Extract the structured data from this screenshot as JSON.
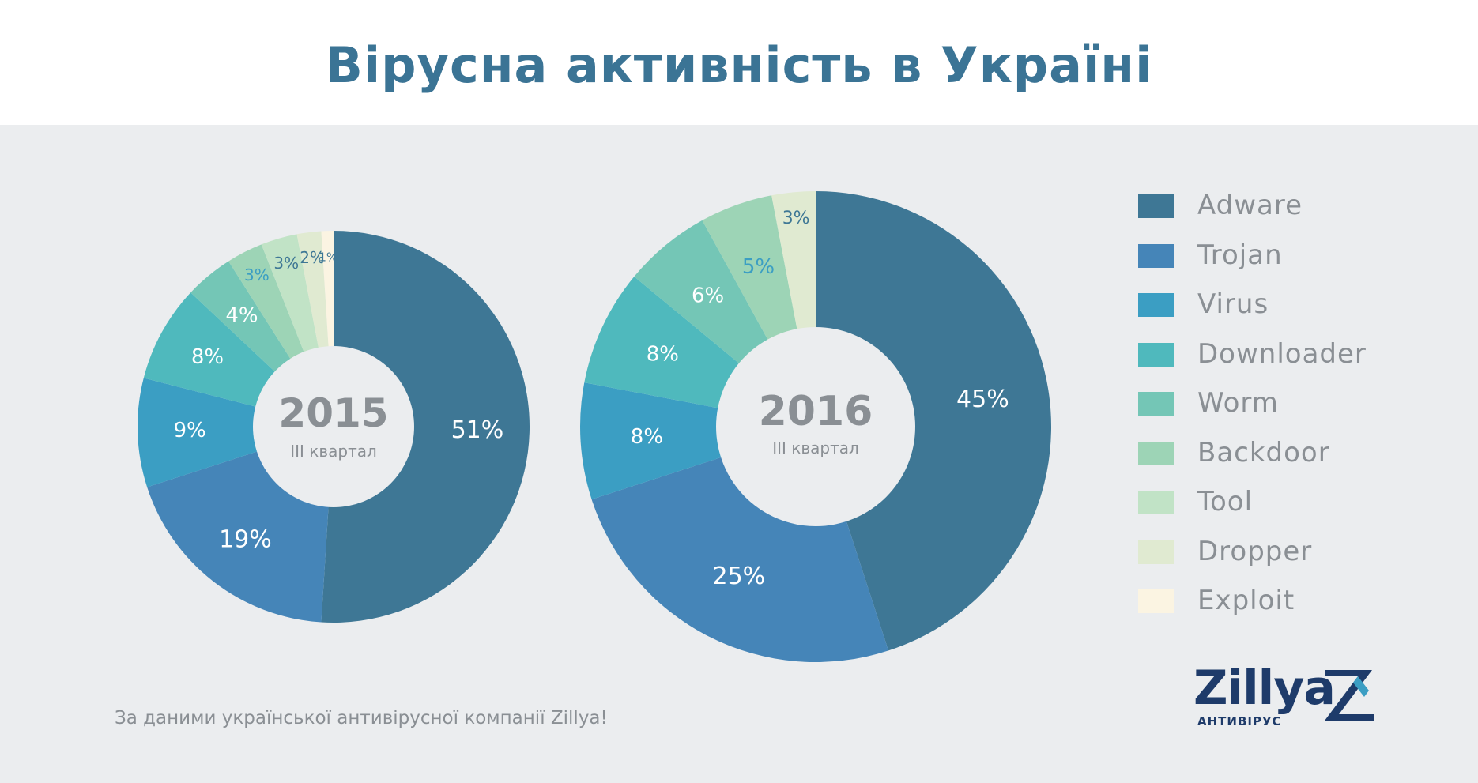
{
  "title": "Вірусна активність в Україні",
  "source_note": "За даними української антивірусної компанії Zillya!",
  "logo": {
    "word": "Zillya",
    "subtitle": "АНТИВІРУС",
    "mark": "zillya-z-logo-icon"
  },
  "colors": {
    "Adware": "#3E7795",
    "Trojan": "#4585B8",
    "Virus": "#3B9EC3",
    "Downloader": "#4FB9BD",
    "Worm": "#74C6B6",
    "Backdoor": "#9DD4B6",
    "Tool": "#C1E3C6",
    "Dropper": "#E0EAD1",
    "Exploit": "#FBF4E2"
  },
  "legend": [
    "Adware",
    "Trojan",
    "Virus",
    "Downloader",
    "Worm",
    "Backdoor",
    "Tool",
    "Dropper",
    "Exploit"
  ],
  "chart_data": [
    {
      "type": "pie",
      "center_label": "2015",
      "center_sublabel": "III квартал",
      "categories": [
        "Adware",
        "Trojan",
        "Virus",
        "Downloader",
        "Worm",
        "Backdoor",
        "Tool",
        "Dropper",
        "Exploit"
      ],
      "values": [
        51,
        19,
        9,
        8,
        4,
        3,
        3,
        2,
        1
      ],
      "labels": [
        "51%",
        "19%",
        "9%",
        "8%",
        "4%",
        "3%",
        "3%",
        "2%",
        "1%"
      ]
    },
    {
      "type": "pie",
      "center_label": "2016",
      "center_sublabel": "III квартал",
      "categories": [
        "Adware",
        "Trojan",
        "Virus",
        "Downloader",
        "Worm",
        "Backdoor",
        "Dropper"
      ],
      "values": [
        45,
        25,
        8,
        8,
        6,
        5,
        3
      ],
      "labels": [
        "45%",
        "25%",
        "8%",
        "8%",
        "6%",
        "5%",
        "3%"
      ]
    }
  ]
}
